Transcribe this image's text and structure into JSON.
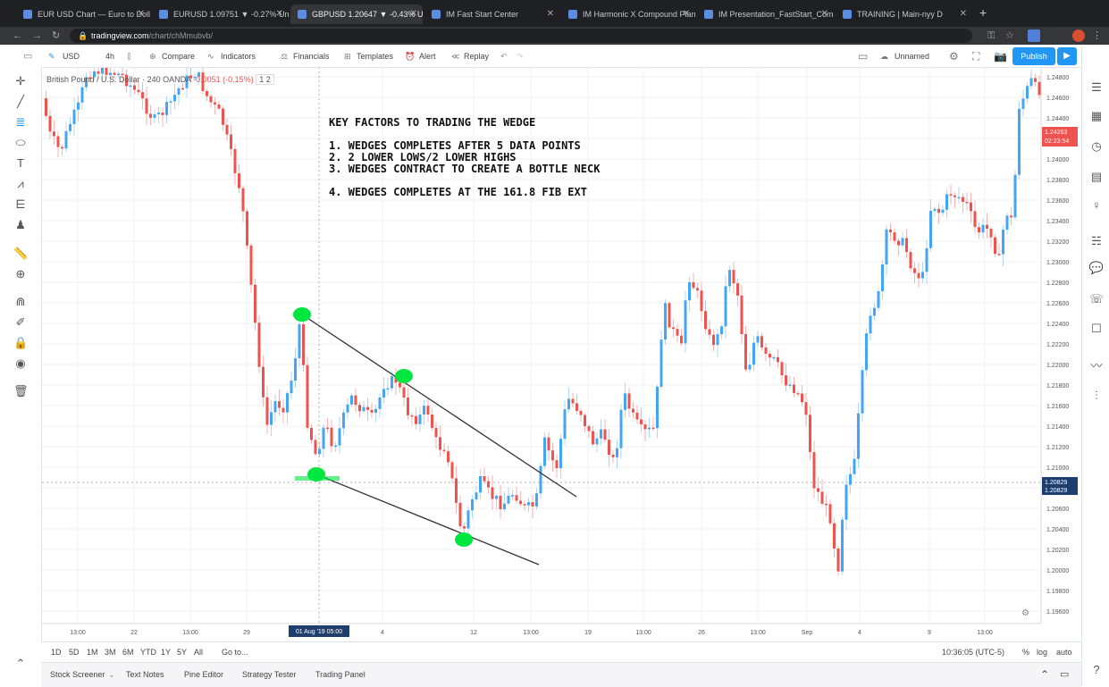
{
  "browser": {
    "tabs": [
      {
        "title": "EUR USD Chart — Euro to Dolla",
        "active": false
      },
      {
        "title": "EURUSD 1.09751 ▼ -0.27% Un",
        "active": false
      },
      {
        "title": "GBPUSD 1.20647 ▼ -0.43% Un",
        "active": true
      },
      {
        "title": "IM Fast Start Center",
        "active": false
      },
      {
        "title": "IM Harmonic X Compound Plan",
        "active": false
      },
      {
        "title": "IM Presentation_FastStart_Comm",
        "active": false
      },
      {
        "title": "TRAINING | Main-nyy D",
        "active": false
      }
    ],
    "url_domain": "tradingview.com",
    "url_path": "/chart/chMmubvb/"
  },
  "toolbar": {
    "symbol": "USD",
    "interval": "4h",
    "compare": "Compare",
    "indicators": "Indicators",
    "financials": "Financials",
    "templates": "Templates",
    "alert": "Alert",
    "replay": "Replay",
    "layout_name": "Unnamed",
    "publish": "Publish"
  },
  "legend": {
    "symbol_name": "British Pound / U.S. Dollar",
    "interval": "240",
    "exchange": "OANDA",
    "change": "-0.0051 (-0.15%)",
    "scale": "1 2"
  },
  "note": {
    "title": "KEY FACTORS TO TRADING THE WEDGE",
    "items": [
      "1. WEDGES COMPLETES AFTER 5 DATA POINTS",
      "2. 2 LOWER LOWS/2 LOWER HIGHS",
      "3. WEDGES CONTRACT TO CREATE A BOTTLE NECK",
      "4. WEDGES COMPLETES AT THE 161.8 FIB EXT"
    ]
  },
  "price_axis": {
    "labels": [
      "1.24800",
      "1.24600",
      "1.24400",
      "1.24200",
      "1.24000",
      "1.23800",
      "1.23600",
      "1.23400",
      "1.23200",
      "1.23000",
      "1.22800",
      "1.22600",
      "1.22400",
      "1.22200",
      "1.22000",
      "1.21800",
      "1.21600",
      "1.21400",
      "1.21200",
      "1.21000",
      "1.20800",
      "1.20600",
      "1.20400",
      "1.20200",
      "1.20000",
      "1.19800",
      "1.19600"
    ],
    "current_price": "1.24263",
    "countdown": "02:23:54",
    "crosshair_price_1": "1.20829",
    "crosshair_price_2": "1.20829"
  },
  "time_axis": {
    "labels": [
      "13:00",
      "22",
      "13:00",
      "29",
      "4",
      "12",
      "13:00",
      "19",
      "13:00",
      "26",
      "13:00",
      "Sep",
      "4",
      "9",
      "13:00"
    ],
    "crosshair_label": "01 Aug '19  05:00"
  },
  "bottom": {
    "ranges": [
      "1D",
      "5D",
      "1M",
      "3M",
      "6M",
      "YTD",
      "1Y",
      "5Y",
      "All"
    ],
    "goto": "Go to...",
    "clock": "10:36:05 (UTC-5)",
    "percent": "%",
    "log": "log",
    "auto": "auto"
  },
  "panels": [
    "Stock Screener",
    "Text Notes",
    "Pine Editor",
    "Strategy Tester",
    "Trading Panel"
  ],
  "colors": {
    "up": "#42a5f5",
    "down": "#ef5350",
    "accent": "#2196f3",
    "marker": "#00e640"
  }
}
